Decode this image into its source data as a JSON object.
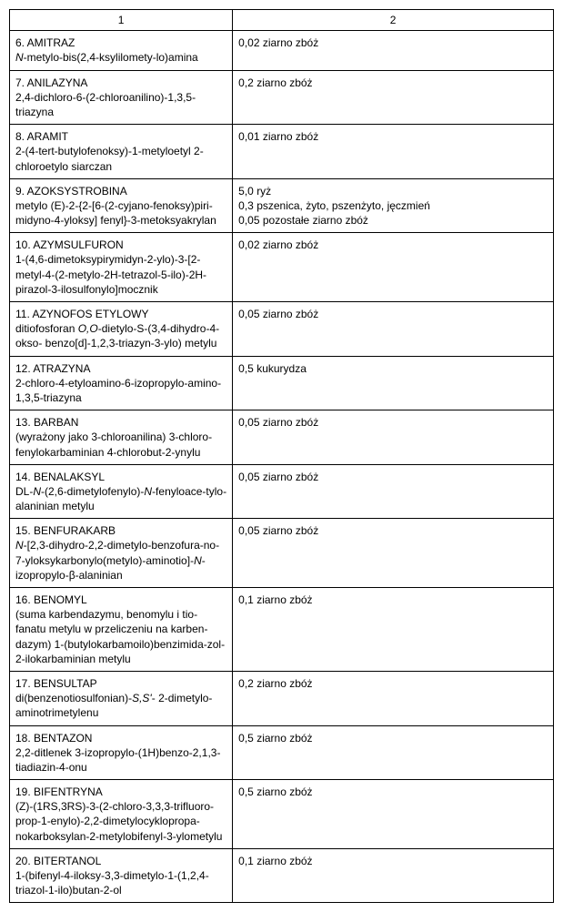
{
  "header": {
    "col1": "1",
    "col2": "2"
  },
  "rows": [
    {
      "name": "6. AMITRAZ",
      "desc": "<span class='ital'>N</span>-metylo-bis(2,4-ksylilomety-lo)amina",
      "values": [
        "0,02 ziarno zbóż"
      ]
    },
    {
      "name": "7. ANILAZYNA",
      "desc": "2,4-dichloro-6-(2-chloroanilino)-1,3,5-triazyna",
      "values": [
        "0,2 ziarno zbóż"
      ]
    },
    {
      "name": "8. ARAMIT",
      "desc": "2-(4-tert-butylofenoksy)-1-metyloetyl 2-chloroetylo siarczan",
      "values": [
        "0,01 ziarno zbóż"
      ]
    },
    {
      "name": "9. AZOKSYSTROBINA",
      "desc": "metylo (E)-2-{2-[6-(2-cyjano-fenoksy)piri-midyno-4-yloksy] fenyl}-3-metoksyakrylan",
      "values": [
        "5,0 ryż",
        "0,3 pszenica, żyto, pszenżyto, jęczmień",
        "0,05 pozostałe ziarno zbóż"
      ]
    },
    {
      "name": "10. AZYMSULFURON",
      "desc": "1-(4,6-dimetoksypirymidyn-2-ylo)-3-[2-metyl-4-(2-metylo-2H-tetrazol-5-ilo)-2H-pirazol-3-ilosulfonylo]mocznik",
      "values": [
        "0,02 ziarno zbóż"
      ]
    },
    {
      "name": "11. AZYNOFOS ETYLOWY",
      "desc": "ditiofosforan <span class='ital'>O,O</span>-dietylo-S-(3,4-dihydro-4-okso- benzo[d]-1,2,3-triazyn-3-ylo) metylu",
      "values": [
        "0,05 ziarno zbóż"
      ]
    },
    {
      "name": "12. ATRAZYNA",
      "desc": "2-chloro-4-etyloamino-6-izopropylo-amino-1,3,5-triazyna",
      "values": [
        "0,5 kukurydza"
      ]
    },
    {
      "name": "13. BARBAN",
      "desc": "(wyrażony jako 3-chloroanilina) 3-chloro-fenylokarbaminian 4-chlorobut-2-ynylu",
      "values": [
        "0,05 ziarno zbóż"
      ]
    },
    {
      "name": "14. BENALAKSYL",
      "desc": "DL-<span class='ital'>N</span>-(2,6-dimetylofenylo)-<span class='ital'>N</span>-fenyloace-tylo-alaninian metylu",
      "values": [
        "0,05 ziarno zbóż"
      ]
    },
    {
      "name": "15. BENFURAKARB",
      "desc": "<span class='ital'>N</span>-[2,3-dihydro-2,2-dimetylo-benzofura-no-7-yloksykarbonylo(metylo)-aminotio]-<span class='ital'>N</span>-izopropylo-β-alaninian",
      "values": [
        "0,05 ziarno zbóż"
      ]
    },
    {
      "name": "16. BENOMYL",
      "desc": "(suma karbendazymu, benomylu i tio-fanatu metylu w przeliczeniu na karben-dazym) 1-(butylokarbamoilo)benzimida-zol-2-ilokarbaminian metylu",
      "values": [
        "0,1 ziarno zbóż"
      ]
    },
    {
      "name": "17. BENSULTAP",
      "desc": "di(benzenotiosulfonian)-<span class='ital'>S,S'</span>- 2-dimetylo-aminotrimetylenu",
      "values": [
        "0,2 ziarno zbóż"
      ]
    },
    {
      "name": "18. BENTAZON",
      "desc": "2,2-ditlenek 3-izopropylo-(1H)benzo-2,1,3-tiadiazin-4-onu",
      "values": [
        "0,5 ziarno zbóż"
      ]
    },
    {
      "name": "19. BIFENTRYNA",
      "desc": "(Z)-(1RS,3RS)-3-(2-chloro-3,3,3-trifluoro-prop-1-enylo)-2,2-dimetylocyklopropa-nokarboksylan-2-metylobifenyl-3-ylometylu",
      "values": [
        "0,5 ziarno zbóż"
      ]
    },
    {
      "name": "20. BITERTANOL",
      "desc": "1-(bifenyl-4-iloksy-3,3-dimetylo-1-(1,2,4-triazol-1-ilo)butan-2-ol",
      "values": [
        "0,1 ziarno zbóż"
      ]
    }
  ]
}
